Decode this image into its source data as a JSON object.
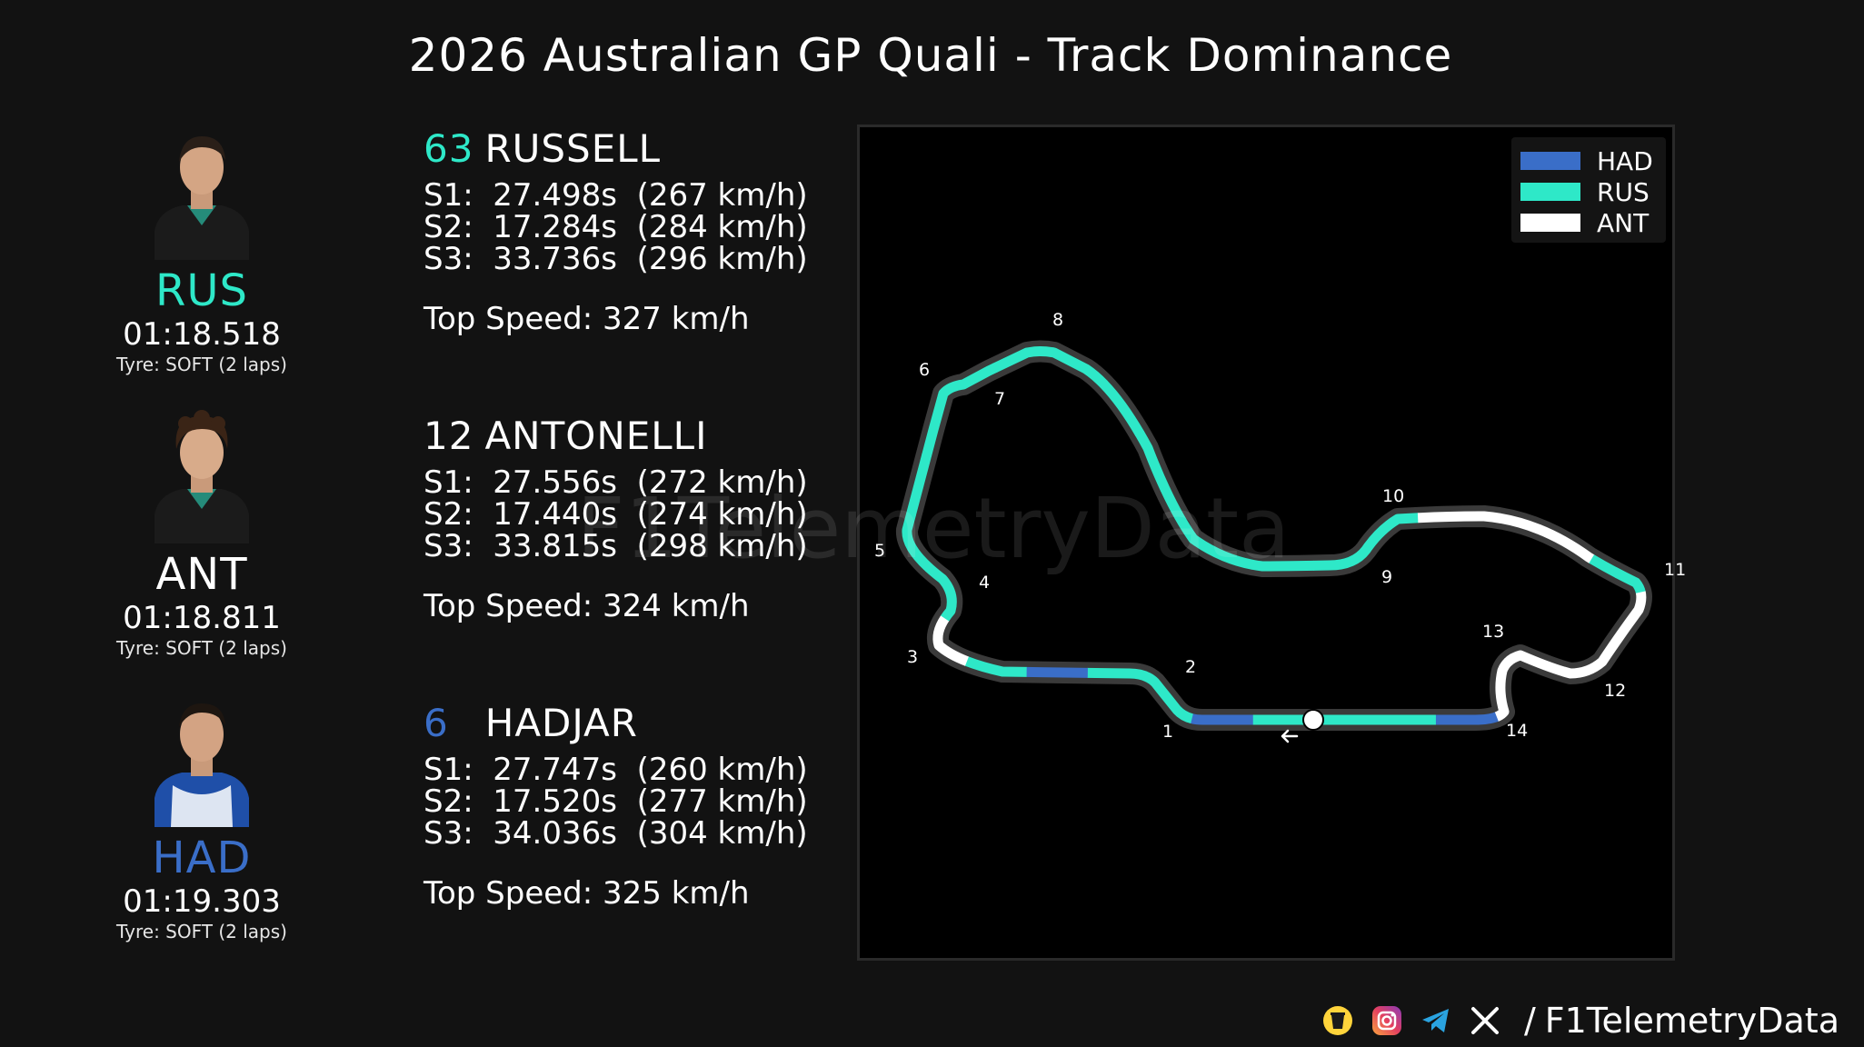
{
  "title": "2026 Australian GP Quali - Track Dominance",
  "colors": {
    "RUS": "#2ee8c8",
    "ANT": "#ffffff",
    "HAD": "#3a6ec8",
    "background": "#121212"
  },
  "drivers": [
    {
      "abbr": "RUS",
      "number": "63",
      "name": "RUSSELL",
      "color": "#2ee8c8",
      "laptime": "01:18.518",
      "tyre": "Tyre: SOFT (2 laps)",
      "s1": "S1:  27.498s  (267 km/h)",
      "s2": "S2:  17.284s  (284 km/h)",
      "s3": "S3:  33.736s  (296 km/h)",
      "top_speed": "Top Speed: 327 km/h",
      "avatar_icon": "driver-photo-icon"
    },
    {
      "abbr": "ANT",
      "number": "12",
      "name": "ANTONELLI",
      "color": "#ffffff",
      "laptime": "01:18.811",
      "tyre": "Tyre: SOFT (2 laps)",
      "s1": "S1:  27.556s  (272 km/h)",
      "s2": "S2:  17.440s  (274 km/h)",
      "s3": "S3:  33.815s  (298 km/h)",
      "top_speed": "Top Speed: 324 km/h",
      "avatar_icon": "driver-photo-icon"
    },
    {
      "abbr": "HAD",
      "number": "6",
      "name": "HADJAR",
      "color": "#3a6ec8",
      "laptime": "01:19.303",
      "tyre": "Tyre: SOFT (2 laps)",
      "s1": "S1:  27.747s  (260 km/h)",
      "s2": "S2:  17.520s  (277 km/h)",
      "s3": "S3:  34.036s  (304 km/h)",
      "top_speed": "Top Speed: 325 km/h",
      "avatar_icon": "driver-photo-icon"
    }
  ],
  "watermark": "F1TelemetryData",
  "footer": {
    "separator": "/",
    "handle": "F1TelemetryData",
    "icons": [
      "coffee-cup-icon",
      "instagram-icon",
      "telegram-icon",
      "x-icon"
    ]
  },
  "chart_data": {
    "type": "track-map",
    "title": "2026 Australian GP Quali - Track Dominance",
    "legend": [
      "HAD",
      "RUS",
      "ANT"
    ],
    "legend_placement": "top-right",
    "corners": [
      "1",
      "2",
      "3",
      "4",
      "5",
      "6",
      "7",
      "8",
      "9",
      "10",
      "11",
      "12",
      "13",
      "14"
    ],
    "fastest_by_minisector": [
      "RUS",
      "HAD",
      "RUS",
      "RUS",
      "HAD",
      "RUS",
      "ANT",
      "RUS",
      "RUS",
      "RUS",
      "RUS",
      "RUS",
      "RUS",
      "RUS",
      "RUS",
      "RUS",
      "RUS",
      "RUS",
      "RUS",
      "RUS",
      "RUS",
      "ANT",
      "ANT",
      "ANT",
      "RUS",
      "ANT",
      "ANT",
      "ANT",
      "ANT",
      "HAD",
      "RUS",
      "RUS"
    ],
    "start_finish_marker": "start-finish-dot-icon",
    "direction_icon": "arrow-left-icon"
  }
}
